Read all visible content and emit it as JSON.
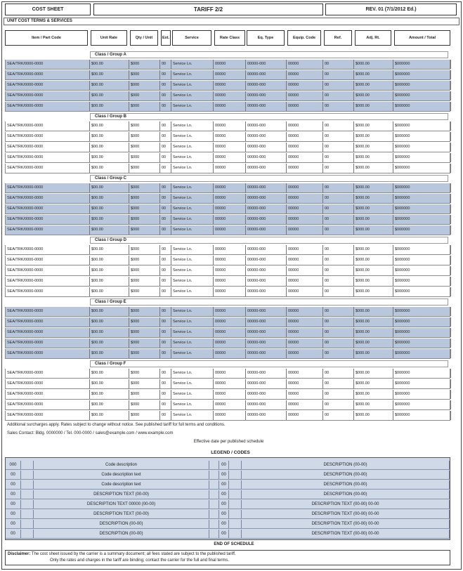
{
  "header": {
    "left_box": "COST SHEET",
    "title": "TARIFF 2/2",
    "right_box": "REV. 01 (7/1/2012 Ed.)"
  },
  "subheader": "UNIT COST TERMS & SERVICES",
  "columns": [
    "Item / Part Code",
    "Unit Rate",
    "Qty / Unit",
    "Ext.",
    "Service",
    "Rate Class",
    "Eq. Type",
    "Equip. Code",
    "Ref.",
    "Adj. Rt.",
    "Amount / Total"
  ],
  "groups": [
    {
      "label": "Class / Group A",
      "shade": "blue"
    },
    {
      "label": "Class / Group B",
      "shade": "white"
    },
    {
      "label": "Class / Group C",
      "shade": "blue"
    },
    {
      "label": "Class / Group D",
      "shade": "white"
    },
    {
      "label": "Class / Group E",
      "shade": "blue"
    },
    {
      "label": "Class / Group F",
      "shade": "white"
    }
  ],
  "row_text": {
    "c0": "SEA/TRK/0000-0000",
    "c1": "$00.00",
    "c2": "$000",
    "c3": "00",
    "c4": "Service Ln.",
    "c5": "00000",
    "c6": "00000-000",
    "c7": "00000",
    "c8": "00",
    "c9": "$000.00",
    "c10": "$000000"
  },
  "notes": {
    "line1": "Additional surcharges apply. Rates subject to change without notice. See published tariff for full terms and conditions.",
    "line2": "Sales Contact: Bldg. 0000000 / Tel. 000-0000 / sales@example.com / www.example.com",
    "line3": "Effective date per published schedule"
  },
  "legend": {
    "title": "LEGEND / CODES",
    "rows": [
      {
        "code": "000",
        "flag": "",
        "desc": "Code description",
        "code2": "00",
        "flag2": "",
        "desc2": "DESCRIPTION (00-00)"
      },
      {
        "code": "00",
        "flag": "",
        "desc": "Code description text",
        "code2": "00",
        "flag2": "",
        "desc2": "DESCRIPTION (00-00)"
      },
      {
        "code": "00",
        "flag": "",
        "desc": "Code description text",
        "code2": "00",
        "flag2": "",
        "desc2": "DESCRIPTION (00-00)"
      },
      {
        "code": "00",
        "flag": "",
        "desc": "DESCRIPTION TEXT (00-00)",
        "code2": "00",
        "flag2": "",
        "desc2": "DESCRIPTION (00-00)"
      },
      {
        "code": "00",
        "flag": "",
        "desc": "DESCRIPTION TEXT 00000 (00-00)",
        "code2": "00",
        "flag2": "",
        "desc2": "DESCRIPTION TEXT (00-00) 00-00"
      },
      {
        "code": "00",
        "flag": "",
        "desc": "DESCRIPTION TEXT (00-00)",
        "code2": "00",
        "flag2": "",
        "desc2": "DESCRIPTION TEXT (00-00) 00-00"
      },
      {
        "code": "00",
        "flag": "",
        "desc": "DESCRIPTION (00-00)",
        "code2": "00",
        "flag2": "",
        "desc2": "DESCRIPTION TEXT (00-00) 00-00"
      },
      {
        "code": "00",
        "flag": "",
        "desc": "DESCRIPTION (00-00)",
        "code2": "00",
        "flag2": "",
        "desc2": "DESCRIPTION TEXT (00-00) 00-00"
      }
    ]
  },
  "footer_label": "END OF SCHEDULE",
  "disclaimer": {
    "label": "Disclaimer:",
    "line1": "The cost sheet issued by the carrier is a summary document; all fees stated are subject to the published tariff.",
    "line2": "Only the rates and charges in the tariff are binding; contact the carrier for the full and final terms."
  }
}
